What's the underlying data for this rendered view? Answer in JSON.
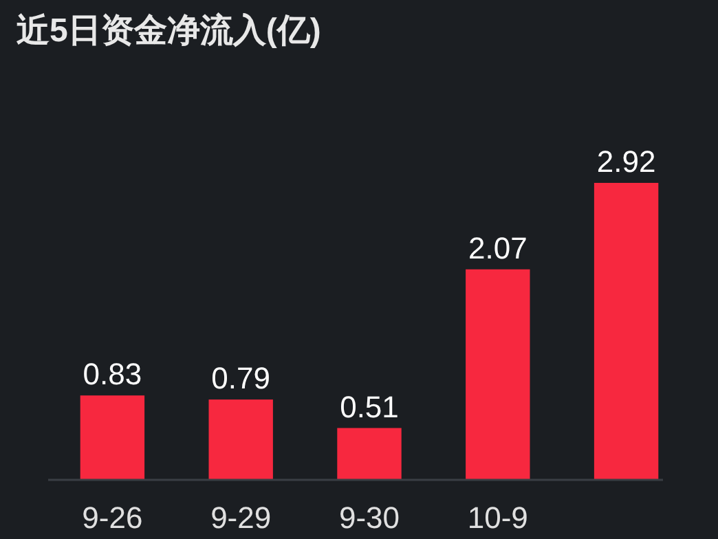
{
  "chart_data": {
    "type": "bar",
    "title": "近5日资金净流入(亿)",
    "categories": [
      "9-26",
      "9-29",
      "9-30",
      "10-9",
      null
    ],
    "values": [
      0.83,
      0.79,
      0.51,
      2.07,
      2.92
    ],
    "color": "#f7283f",
    "data_labels": true
  }
}
